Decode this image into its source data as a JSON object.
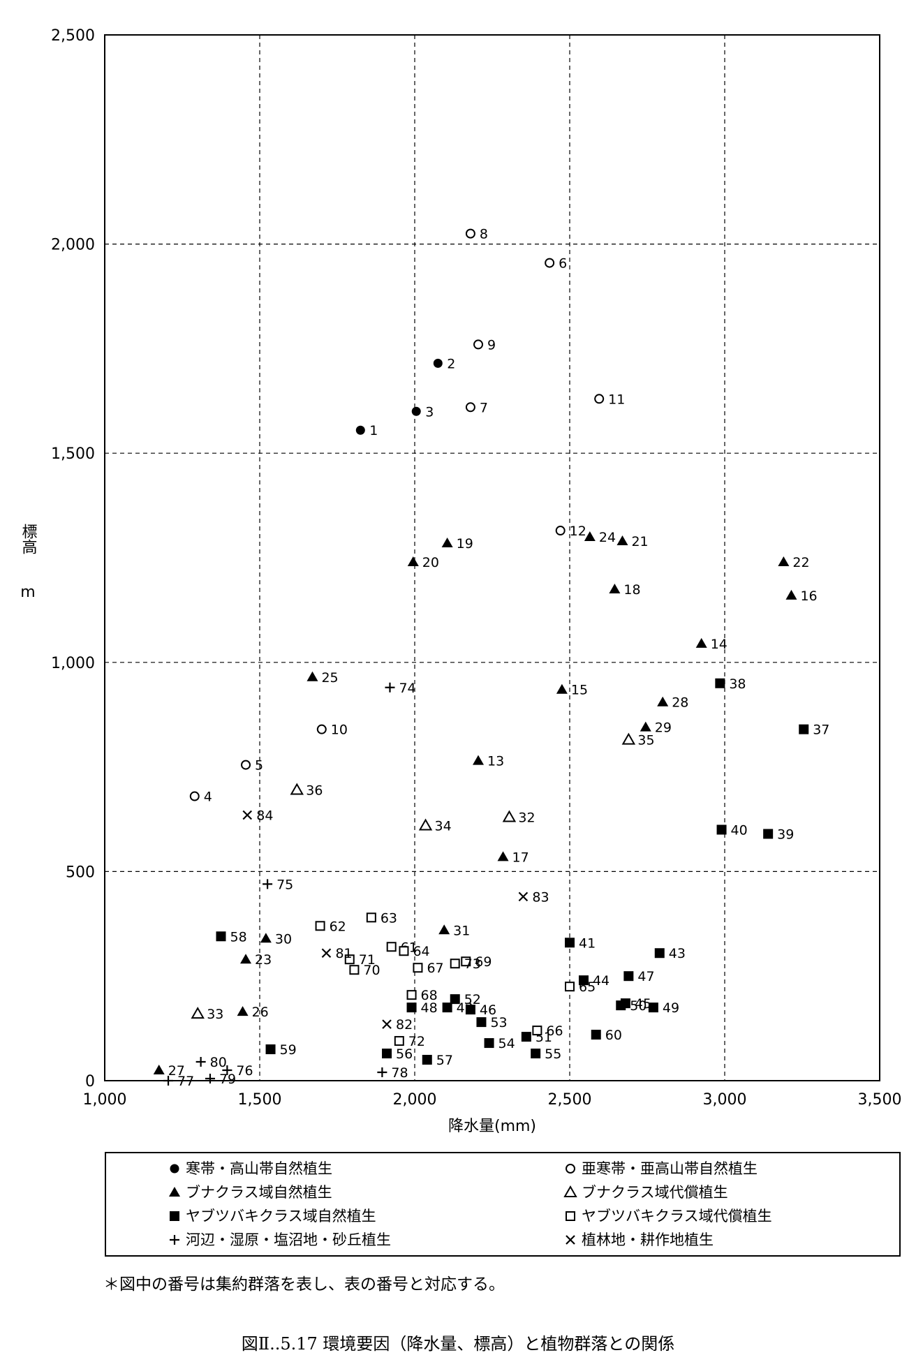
{
  "chart_data": {
    "type": "scatter",
    "title": "",
    "xlabel": "降水量(mm)",
    "ylabel_main": "標高",
    "ylabel_unit": "m",
    "xlim": [
      1000,
      3500
    ],
    "ylim": [
      0,
      2500
    ],
    "xticks": [
      1000,
      1500,
      2000,
      2500,
      3000,
      3500
    ],
    "xtick_labels": [
      "1,000",
      "1,500",
      "2,000",
      "2,500",
      "3,000",
      "3,500"
    ],
    "yticks": [
      0,
      500,
      1000,
      1500,
      2000,
      2500
    ],
    "ytick_labels": [
      "0",
      "500",
      "1,000",
      "1,500",
      "2,000",
      "2,500"
    ],
    "grid": "dashed",
    "legend_placement": "bottom",
    "series": [
      {
        "name": "寒帯・高山帯自然植生",
        "marker": "filled-circle",
        "points": [
          {
            "id": "1",
            "x": 1825,
            "y": 1555
          },
          {
            "id": "2",
            "x": 2075,
            "y": 1715
          },
          {
            "id": "3",
            "x": 2005,
            "y": 1600
          }
        ]
      },
      {
        "name": "亜寒帯・亜高山帯自然植生",
        "marker": "open-circle",
        "points": [
          {
            "id": "4",
            "x": 1290,
            "y": 680
          },
          {
            "id": "5",
            "x": 1455,
            "y": 755
          },
          {
            "id": "6",
            "x": 2435,
            "y": 1955
          },
          {
            "id": "7",
            "x": 2180,
            "y": 1610
          },
          {
            "id": "8",
            "x": 2180,
            "y": 2025
          },
          {
            "id": "9",
            "x": 2205,
            "y": 1760
          },
          {
            "id": "10",
            "x": 1700,
            "y": 840
          },
          {
            "id": "11",
            "x": 2595,
            "y": 1630
          },
          {
            "id": "12",
            "x": 2470,
            "y": 1315
          }
        ]
      },
      {
        "name": "ブナクラス域自然植生",
        "marker": "filled-triangle",
        "points": [
          {
            "id": "13",
            "x": 2205,
            "y": 765
          },
          {
            "id": "14",
            "x": 2925,
            "y": 1045
          },
          {
            "id": "15",
            "x": 2475,
            "y": 935
          },
          {
            "id": "16",
            "x": 3215,
            "y": 1160
          },
          {
            "id": "17",
            "x": 2285,
            "y": 535
          },
          {
            "id": "18",
            "x": 2645,
            "y": 1175
          },
          {
            "id": "19",
            "x": 2105,
            "y": 1285
          },
          {
            "id": "20",
            "x": 1995,
            "y": 1240
          },
          {
            "id": "21",
            "x": 2670,
            "y": 1290
          },
          {
            "id": "22",
            "x": 3190,
            "y": 1240
          },
          {
            "id": "23",
            "x": 1455,
            "y": 290
          },
          {
            "id": "24",
            "x": 2565,
            "y": 1300
          },
          {
            "id": "25",
            "x": 1670,
            "y": 965
          },
          {
            "id": "26",
            "x": 1445,
            "y": 165
          },
          {
            "id": "27",
            "x": 1175,
            "y": 25
          },
          {
            "id": "28",
            "x": 2800,
            "y": 905
          },
          {
            "id": "29",
            "x": 2745,
            "y": 845
          },
          {
            "id": "30",
            "x": 1520,
            "y": 340
          },
          {
            "id": "31",
            "x": 2095,
            "y": 360
          }
        ]
      },
      {
        "name": "ブナクラス域代償植生",
        "marker": "open-triangle",
        "points": [
          {
            "id": "32",
            "x": 2305,
            "y": 630
          },
          {
            "id": "33",
            "x": 1300,
            "y": 160
          },
          {
            "id": "34",
            "x": 2035,
            "y": 610
          },
          {
            "id": "35",
            "x": 2690,
            "y": 815
          },
          {
            "id": "36",
            "x": 1620,
            "y": 695
          }
        ]
      },
      {
        "name": "ヤブツバキクラス域自然植生",
        "marker": "filled-square",
        "points": [
          {
            "id": "37",
            "x": 3255,
            "y": 840
          },
          {
            "id": "38",
            "x": 2985,
            "y": 950
          },
          {
            "id": "39",
            "x": 3140,
            "y": 590
          },
          {
            "id": "40",
            "x": 2990,
            "y": 600
          },
          {
            "id": "41",
            "x": 2500,
            "y": 330
          },
          {
            "id": "42",
            "x": 2105,
            "y": 175
          },
          {
            "id": "43",
            "x": 2790,
            "y": 305
          },
          {
            "id": "44",
            "x": 2545,
            "y": 240
          },
          {
            "id": "45",
            "x": 2680,
            "y": 185
          },
          {
            "id": "46",
            "x": 2180,
            "y": 170
          },
          {
            "id": "47",
            "x": 2690,
            "y": 250
          },
          {
            "id": "48",
            "x": 1990,
            "y": 175
          },
          {
            "id": "49",
            "x": 2770,
            "y": 175
          },
          {
            "id": "50",
            "x": 2665,
            "y": 180
          },
          {
            "id": "51",
            "x": 2360,
            "y": 105
          },
          {
            "id": "52",
            "x": 2130,
            "y": 195
          },
          {
            "id": "53",
            "x": 2215,
            "y": 140
          },
          {
            "id": "54",
            "x": 2240,
            "y": 90
          },
          {
            "id": "55",
            "x": 2390,
            "y": 65
          },
          {
            "id": "56",
            "x": 1910,
            "y": 65
          },
          {
            "id": "57",
            "x": 2040,
            "y": 50
          },
          {
            "id": "58",
            "x": 1375,
            "y": 345
          },
          {
            "id": "59",
            "x": 1535,
            "y": 75
          },
          {
            "id": "60",
            "x": 2585,
            "y": 110
          }
        ]
      },
      {
        "name": "ヤブツバキクラス域代償植生",
        "marker": "open-square",
        "points": [
          {
            "id": "61",
            "x": 1925,
            "y": 320
          },
          {
            "id": "62",
            "x": 1695,
            "y": 370
          },
          {
            "id": "63",
            "x": 1860,
            "y": 390
          },
          {
            "id": "64",
            "x": 1965,
            "y": 310
          },
          {
            "id": "65",
            "x": 2500,
            "y": 225
          },
          {
            "id": "66",
            "x": 2395,
            "y": 120
          },
          {
            "id": "67",
            "x": 2010,
            "y": 270
          },
          {
            "id": "68",
            "x": 1990,
            "y": 205
          },
          {
            "id": "69",
            "x": 2165,
            "y": 285
          },
          {
            "id": "70",
            "x": 1805,
            "y": 265
          },
          {
            "id": "71",
            "x": 1790,
            "y": 290
          },
          {
            "id": "72",
            "x": 1950,
            "y": 95
          },
          {
            "id": "73",
            "x": 2130,
            "y": 280
          }
        ]
      },
      {
        "name": "河辺・湿原・塩沼地・砂丘植生",
        "marker": "plus",
        "points": [
          {
            "id": "74",
            "x": 1920,
            "y": 940
          },
          {
            "id": "75",
            "x": 1525,
            "y": 470
          },
          {
            "id": "76",
            "x": 1395,
            "y": 25
          },
          {
            "id": "77",
            "x": 1205,
            "y": 0
          },
          {
            "id": "78",
            "x": 1895,
            "y": 20
          },
          {
            "id": "79",
            "x": 1340,
            "y": 5
          },
          {
            "id": "80",
            "x": 1310,
            "y": 45
          }
        ]
      },
      {
        "name": "植林地・耕作地植生",
        "marker": "cross",
        "points": [
          {
            "id": "81",
            "x": 1715,
            "y": 305
          },
          {
            "id": "82",
            "x": 1910,
            "y": 135
          },
          {
            "id": "83",
            "x": 2350,
            "y": 440
          },
          {
            "id": "84",
            "x": 1460,
            "y": 635
          }
        ]
      }
    ]
  },
  "note": "＊図中の番号は集約群落を表し、表の番号と対応する。",
  "caption": "図Ⅱ..5.17 環境要因（降水量、標高）と植物群落との関係"
}
